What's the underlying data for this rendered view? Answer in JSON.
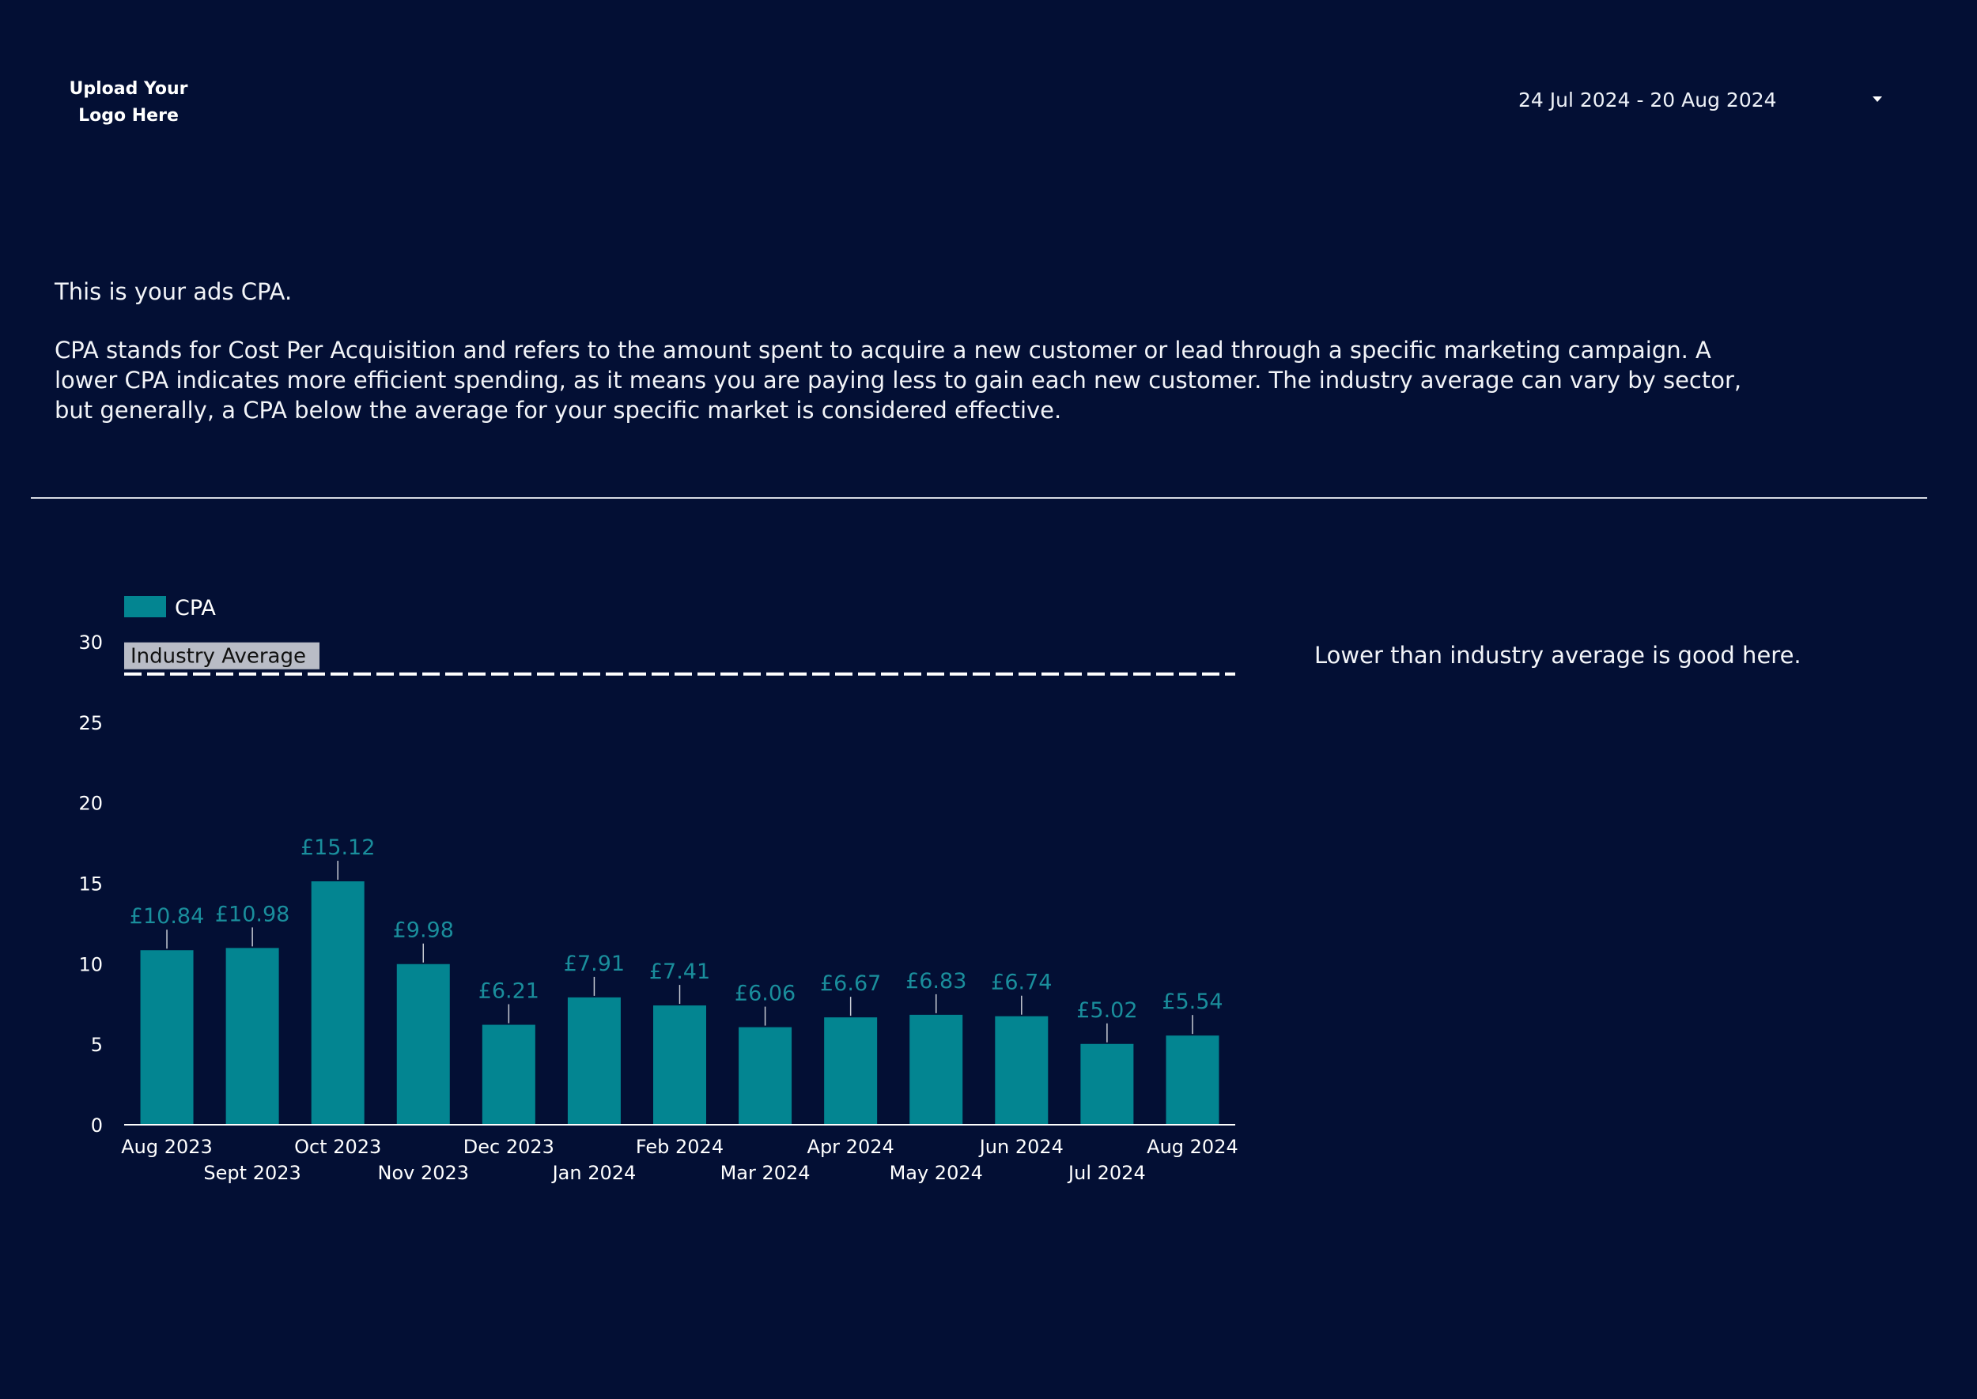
{
  "header": {
    "logo_text": "Upload Your\nLogo Here",
    "date_range": "24 Jul 2024 - 20 Aug 2024"
  },
  "intro": {
    "heading": "This is your ads CPA.",
    "description": "CPA stands for Cost Per Acquisition and refers to the amount spent to acquire a new customer or lead through a specific marketing campaign. A lower CPA indicates more efficient spending, as it means you are paying less to gain each new customer. The industry average can vary by sector, but generally, a CPA below the average for your specific market is considered effective."
  },
  "note": "Lower than industry average is good here.",
  "colors": {
    "background": "#030f34",
    "bar": "#038591",
    "bar_label": "#1a8e9c",
    "text": "#ffffff",
    "ref_label_bg": "#b9bcc6"
  },
  "chart_data": {
    "type": "bar",
    "categories": [
      "Aug 2023",
      "Sept 2023",
      "Oct 2023",
      "Nov 2023",
      "Dec 2023",
      "Jan 2024",
      "Feb 2024",
      "Mar 2024",
      "Apr 2024",
      "May 2024",
      "Jun 2024",
      "Jul 2024",
      "Aug 2024"
    ],
    "series": [
      {
        "name": "CPA",
        "values": [
          10.84,
          10.98,
          15.12,
          9.98,
          6.21,
          7.91,
          7.41,
          6.06,
          6.67,
          6.83,
          6.74,
          5.02,
          5.54
        ],
        "labels": [
          "£10.84",
          "£10.98",
          "£15.12",
          "£9.98",
          "£6.21",
          "£7.91",
          "£7.41",
          "£6.06",
          "£6.67",
          "£6.83",
          "£6.74",
          "£5.02",
          "£5.54"
        ]
      }
    ],
    "reference_line": {
      "label": "Industry Average",
      "value": 28,
      "style": "dashed"
    },
    "ylim": [
      0,
      30
    ],
    "yticks": [
      0,
      5,
      10,
      15,
      20,
      25,
      30
    ],
    "legend": "top-left",
    "grid": false
  }
}
